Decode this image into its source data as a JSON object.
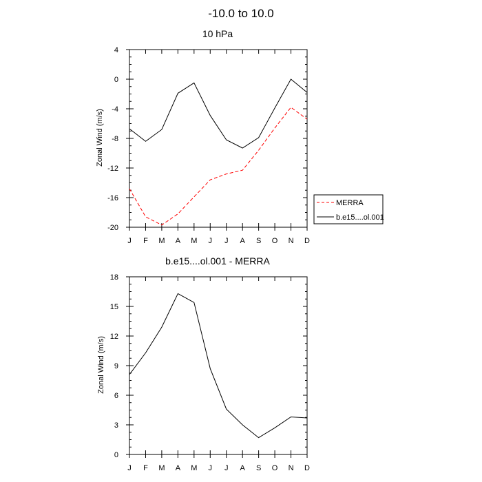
{
  "page": {
    "title": "-10.0 to  10.0"
  },
  "chart_data": [
    {
      "type": "line",
      "title": "10 hPa",
      "xlabel": "",
      "ylabel": "Zonal Wind (m/s)",
      "categories": [
        "J",
        "F",
        "M",
        "A",
        "M",
        "J",
        "J",
        "A",
        "S",
        "O",
        "N",
        "D"
      ],
      "ylim": [
        -20,
        4
      ],
      "yticks": [
        4,
        0,
        -4,
        -8,
        -12,
        -16,
        -20
      ],
      "grid": false,
      "legend_position": "right",
      "series": [
        {
          "name": "MERRA",
          "color": "#ff0000",
          "dash": "dashed",
          "values": [
            -14.8,
            -18.6,
            -19.7,
            -18.2,
            -15.9,
            -13.6,
            -12.8,
            -12.3,
            -9.6,
            -6.6,
            -3.8,
            -5.4
          ]
        },
        {
          "name": "b.e15....ol.001",
          "color": "#000000",
          "dash": "solid",
          "values": [
            -6.7,
            -8.4,
            -6.8,
            -1.9,
            -0.5,
            -4.9,
            -8.2,
            -9.3,
            -7.9,
            -3.9,
            0.0,
            -1.8
          ]
        }
      ]
    },
    {
      "type": "line",
      "title": "b.e15....ol.001 - MERRA",
      "xlabel": "",
      "ylabel": "Zonal Wind (m/s)",
      "categories": [
        "J",
        "F",
        "M",
        "A",
        "M",
        "J",
        "J",
        "A",
        "S",
        "O",
        "N",
        "D"
      ],
      "ylim": [
        0,
        18
      ],
      "yticks": [
        18,
        15,
        12,
        9,
        6,
        3,
        0
      ],
      "grid": false,
      "series": [
        {
          "color": "#000000",
          "dash": "solid",
          "values": [
            8.1,
            10.3,
            12.9,
            16.3,
            15.4,
            8.7,
            4.6,
            3.0,
            1.7,
            2.7,
            3.8,
            3.7
          ]
        }
      ]
    }
  ]
}
